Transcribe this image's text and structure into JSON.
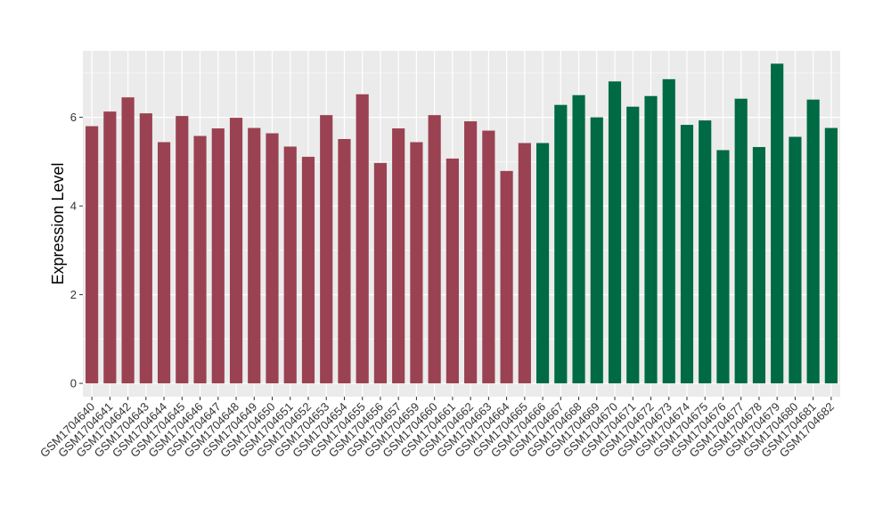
{
  "chart_data": {
    "type": "bar",
    "title": "",
    "xlabel": "",
    "ylabel": "Expression Level",
    "ylim": [
      -0.3,
      7.5
    ],
    "yticks": [
      0,
      2,
      4,
      6
    ],
    "grid": true,
    "legend": "none",
    "categories": [
      "GSM1704640",
      "GSM1704641",
      "GSM1704642",
      "GSM1704643",
      "GSM1704644",
      "GSM1704645",
      "GSM1704646",
      "GSM1704647",
      "GSM1704648",
      "GSM1704649",
      "GSM1704650",
      "GSM1704651",
      "GSM1704652",
      "GSM1704653",
      "GSM1704654",
      "GSM1704655",
      "GSM1704656",
      "GSM1704657",
      "GSM1704659",
      "GSM1704660",
      "GSM1704661",
      "GSM1704662",
      "GSM1704663",
      "GSM1704664",
      "GSM1704665",
      "GSM1704666",
      "GSM1704667",
      "GSM1704668",
      "GSM1704669",
      "GSM1704670",
      "GSM1704671",
      "GSM1704672",
      "GSM1704673",
      "GSM1704674",
      "GSM1704675",
      "GSM1704676",
      "GSM1704677",
      "GSM1704678",
      "GSM1704679",
      "GSM1704680",
      "GSM1704681",
      "GSM1704682"
    ],
    "values": [
      5.8,
      6.13,
      6.45,
      6.09,
      5.44,
      6.03,
      5.58,
      5.75,
      5.99,
      5.76,
      5.64,
      5.34,
      5.11,
      6.05,
      5.51,
      6.52,
      4.97,
      5.75,
      5.44,
      6.05,
      5.07,
      5.91,
      5.7,
      4.79,
      5.42,
      5.42,
      6.28,
      6.5,
      6.0,
      6.81,
      6.24,
      6.48,
      6.86,
      5.83,
      5.93,
      5.26,
      6.42,
      5.33,
      7.21,
      5.56,
      6.4,
      5.76
    ],
    "colors": [
      "#9a4251",
      "#9a4251",
      "#9a4251",
      "#9a4251",
      "#9a4251",
      "#9a4251",
      "#9a4251",
      "#9a4251",
      "#9a4251",
      "#9a4251",
      "#9a4251",
      "#9a4251",
      "#9a4251",
      "#9a4251",
      "#9a4251",
      "#9a4251",
      "#9a4251",
      "#9a4251",
      "#9a4251",
      "#9a4251",
      "#9a4251",
      "#9a4251",
      "#9a4251",
      "#9a4251",
      "#9a4251",
      "#006a44",
      "#006a44",
      "#006a44",
      "#006a44",
      "#006a44",
      "#006a44",
      "#006a44",
      "#006a44",
      "#006a44",
      "#006a44",
      "#006a44",
      "#006a44",
      "#006a44",
      "#006a44",
      "#006a44",
      "#006a44",
      "#006a44"
    ],
    "panel_background": "#ebebeb",
    "grid_color": "#ffffff"
  }
}
